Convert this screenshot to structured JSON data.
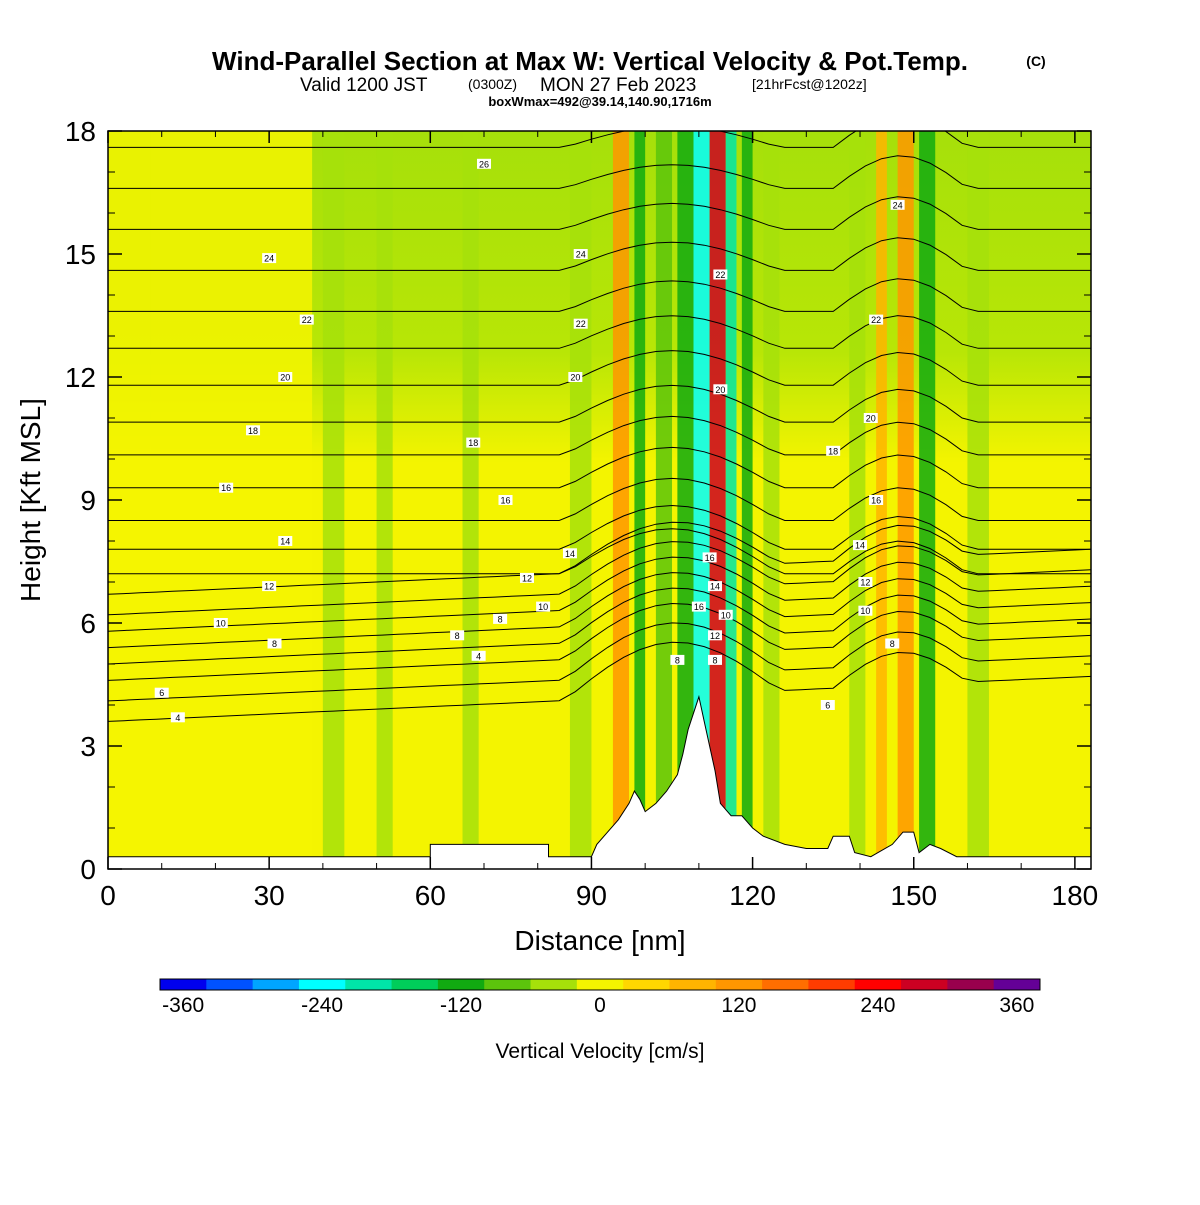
{
  "header": {
    "title": "Wind-Parallel Section at Max W: Vertical Velocity & Pot.Temp.",
    "copyright": "(C)",
    "valid_prefix": "Valid 1200 JST",
    "valid_zulu": "(0300Z)",
    "valid_date": "MON 27 Feb 2023",
    "forecast": "[21hrFcst@1202z]",
    "box_info": "boxWmax=492@39.14,140.90,1716m"
  },
  "chart_data": {
    "type": "heatmap",
    "xlabel": "Distance [nm]",
    "ylabel": "Height [Kft MSL]",
    "xlim": [
      0,
      183
    ],
    "ylim": [
      0,
      18
    ],
    "x_ticks": [
      "0",
      "30",
      "60",
      "90",
      "120",
      "150",
      "180"
    ],
    "x_tick_values": [
      0,
      30,
      60,
      90,
      120,
      150,
      180
    ],
    "y_ticks": [
      "0",
      "3",
      "6",
      "9",
      "12",
      "15",
      "18"
    ],
    "y_tick_values": [
      0,
      3,
      6,
      9,
      12,
      15,
      18
    ],
    "colorbar": {
      "label": "Vertical Velocity [cm/s]",
      "ticks": [
        "-360",
        "-240",
        "-120",
        "0",
        "120",
        "240",
        "360"
      ],
      "tick_values": [
        -360,
        -240,
        -120,
        0,
        120,
        240,
        360
      ],
      "range": [
        -380,
        380
      ],
      "colors": [
        "#0000ee",
        "#0052ff",
        "#00a5ff",
        "#00ffff",
        "#00e5a8",
        "#00cd5a",
        "#11aa11",
        "#5cc40c",
        "#a6e00a",
        "#f4f400",
        "#ffd700",
        "#ffb400",
        "#ff9600",
        "#ff6e00",
        "#ff3c00",
        "#ff0000",
        "#cc0022",
        "#99004d",
        "#640096"
      ]
    },
    "terrain": [
      [
        0,
        0.3
      ],
      [
        20,
        0.3
      ],
      [
        40,
        0.3
      ],
      [
        60,
        0.3
      ],
      [
        60,
        0.6
      ],
      [
        82,
        0.6
      ],
      [
        82,
        0.3
      ],
      [
        90,
        0.3
      ],
      [
        91,
        0.6
      ],
      [
        93,
        0.9
      ],
      [
        95,
        1.2
      ],
      [
        97,
        1.6
      ],
      [
        98,
        1.9
      ],
      [
        99,
        1.7
      ],
      [
        100,
        1.4
      ],
      [
        102,
        1.6
      ],
      [
        104,
        1.9
      ],
      [
        106,
        2.3
      ],
      [
        107,
        2.8
      ],
      [
        108,
        3.4
      ],
      [
        109,
        3.8
      ],
      [
        110,
        4.2
      ],
      [
        111,
        3.6
      ],
      [
        112,
        3.0
      ],
      [
        113,
        2.4
      ],
      [
        114,
        1.6
      ],
      [
        116,
        1.3
      ],
      [
        118,
        1.3
      ],
      [
        120,
        1.0
      ],
      [
        122,
        0.8
      ],
      [
        126,
        0.6
      ],
      [
        130,
        0.5
      ],
      [
        134,
        0.5
      ],
      [
        135,
        0.8
      ],
      [
        138,
        0.8
      ],
      [
        139,
        0.4
      ],
      [
        142,
        0.3
      ],
      [
        146,
        0.6
      ],
      [
        148,
        0.9
      ],
      [
        150,
        0.9
      ],
      [
        151,
        0.4
      ],
      [
        153,
        0.6
      ],
      [
        155,
        0.5
      ],
      [
        158,
        0.3
      ],
      [
        183,
        0.3
      ]
    ],
    "vertical_velocity_bands": [
      {
        "x": 0,
        "w": 8,
        "value": 5
      },
      {
        "x": 8,
        "w": 30,
        "value": -20
      },
      {
        "x": 40,
        "w": 4,
        "value": -55
      },
      {
        "x": 50,
        "w": 3,
        "value": -50
      },
      {
        "x": 66,
        "w": 3,
        "value": -45
      },
      {
        "x": 86,
        "w": 4,
        "value": -60
      },
      {
        "x": 94,
        "w": 3,
        "value": 100
      },
      {
        "x": 98,
        "w": 2,
        "value": -110
      },
      {
        "x": 102,
        "w": 3,
        "value": -90
      },
      {
        "x": 106,
        "w": 3,
        "value": -140
      },
      {
        "x": 109,
        "w": 3,
        "value": -260
      },
      {
        "x": 112,
        "w": 3,
        "value": 280
      },
      {
        "x": 115,
        "w": 2,
        "value": -200
      },
      {
        "x": 118,
        "w": 2,
        "value": -120
      },
      {
        "x": 122,
        "w": 3,
        "value": -50
      },
      {
        "x": 138,
        "w": 3,
        "value": -60
      },
      {
        "x": 143,
        "w": 2,
        "value": 80
      },
      {
        "x": 147,
        "w": 3,
        "value": 110
      },
      {
        "x": 151,
        "w": 3,
        "value": -130
      },
      {
        "x": 160,
        "w": 4,
        "value": -50
      }
    ],
    "theta_contour_labels": [
      {
        "x": 70,
        "y": 17.2,
        "text": "26"
      },
      {
        "x": 30,
        "y": 14.9,
        "text": "24"
      },
      {
        "x": 88,
        "y": 15.0,
        "text": "24"
      },
      {
        "x": 147,
        "y": 16.2,
        "text": "24"
      },
      {
        "x": 37,
        "y": 13.4,
        "text": "22"
      },
      {
        "x": 88,
        "y": 13.3,
        "text": "22"
      },
      {
        "x": 114,
        "y": 14.5,
        "text": "22"
      },
      {
        "x": 143,
        "y": 13.4,
        "text": "22"
      },
      {
        "x": 33,
        "y": 12.0,
        "text": "20"
      },
      {
        "x": 87,
        "y": 12.0,
        "text": "20"
      },
      {
        "x": 114,
        "y": 11.7,
        "text": "20"
      },
      {
        "x": 142,
        "y": 11.0,
        "text": "20"
      },
      {
        "x": 27,
        "y": 10.7,
        "text": "18"
      },
      {
        "x": 68,
        "y": 10.4,
        "text": "18"
      },
      {
        "x": 135,
        "y": 10.2,
        "text": "18"
      },
      {
        "x": 22,
        "y": 9.3,
        "text": "16"
      },
      {
        "x": 74,
        "y": 9.0,
        "text": "16"
      },
      {
        "x": 143,
        "y": 9.0,
        "text": "16"
      },
      {
        "x": 33,
        "y": 8.0,
        "text": "14"
      },
      {
        "x": 86,
        "y": 7.7,
        "text": "14"
      },
      {
        "x": 140,
        "y": 7.9,
        "text": "14"
      },
      {
        "x": 112,
        "y": 7.6,
        "text": "16"
      },
      {
        "x": 30,
        "y": 6.9,
        "text": "12"
      },
      {
        "x": 78,
        "y": 7.1,
        "text": "12"
      },
      {
        "x": 141,
        "y": 7.0,
        "text": "12"
      },
      {
        "x": 113,
        "y": 6.9,
        "text": "14"
      },
      {
        "x": 21,
        "y": 6.0,
        "text": "10"
      },
      {
        "x": 81,
        "y": 6.4,
        "text": "10"
      },
      {
        "x": 141,
        "y": 6.3,
        "text": "10"
      },
      {
        "x": 115,
        "y": 6.2,
        "text": "10"
      },
      {
        "x": 110,
        "y": 6.4,
        "text": "16"
      },
      {
        "x": 113,
        "y": 5.7,
        "text": "12"
      },
      {
        "x": 31,
        "y": 5.5,
        "text": "8"
      },
      {
        "x": 65,
        "y": 5.7,
        "text": "8"
      },
      {
        "x": 73,
        "y": 6.1,
        "text": "8"
      },
      {
        "x": 146,
        "y": 5.5,
        "text": "8"
      },
      {
        "x": 106,
        "y": 5.1,
        "text": "8"
      },
      {
        "x": 113,
        "y": 5.1,
        "text": "8"
      },
      {
        "x": 10,
        "y": 4.3,
        "text": "6"
      },
      {
        "x": 134,
        "y": 4.0,
        "text": "6"
      },
      {
        "x": 13,
        "y": 3.7,
        "text": "4"
      },
      {
        "x": 69,
        "y": 5.2,
        "text": "4"
      }
    ]
  }
}
